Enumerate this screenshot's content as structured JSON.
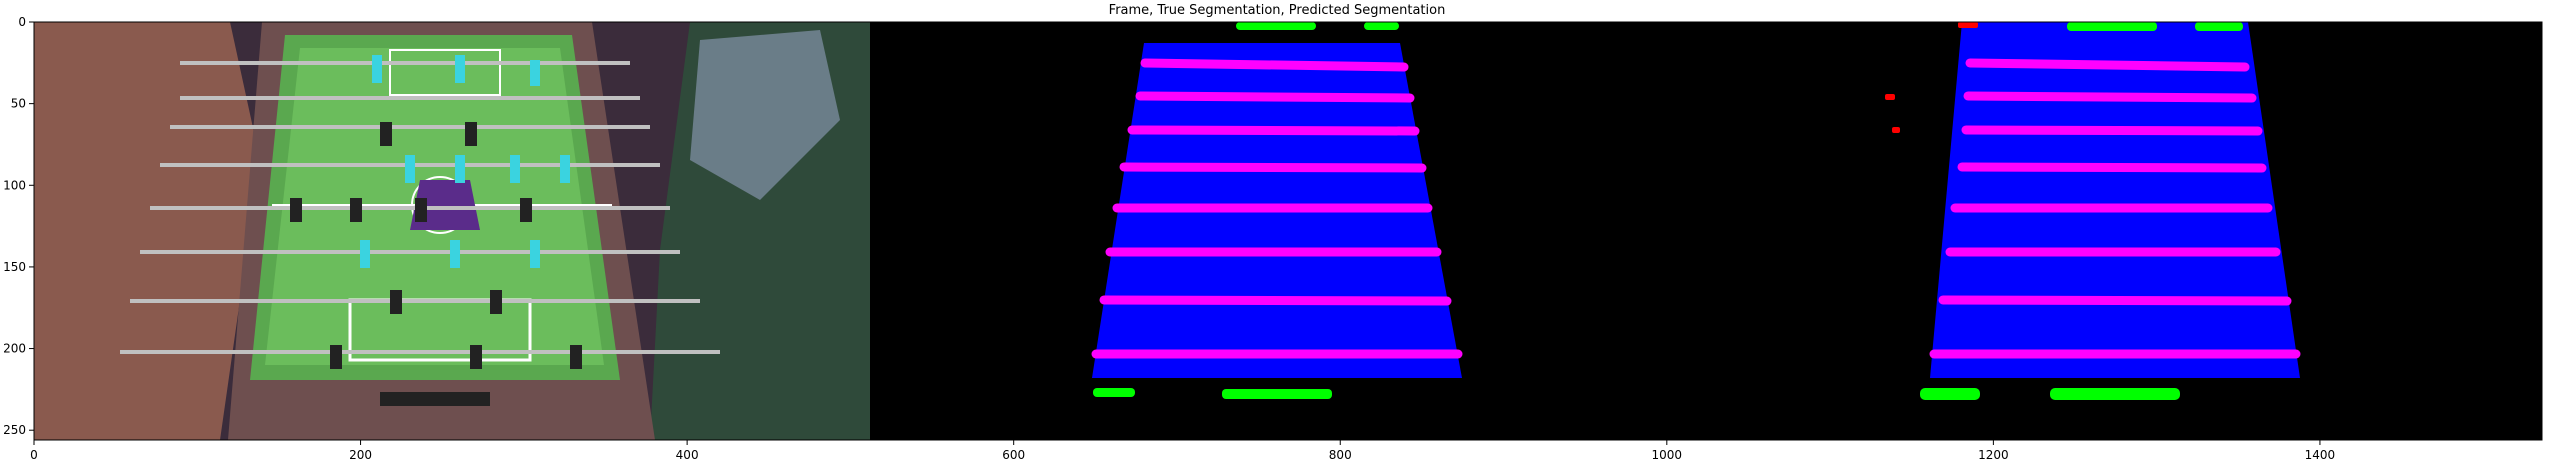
{
  "figure": {
    "title": "Frame, True Segmentation, Predicted Segmentation"
  },
  "chart_data": {
    "type": "image",
    "xlim": [
      0,
      1536
    ],
    "ylim": [
      256,
      0
    ],
    "x_ticks": [
      0,
      200,
      400,
      600,
      800,
      1000,
      1200,
      1400
    ],
    "y_ticks": [
      0,
      50,
      100,
      150,
      200,
      250
    ],
    "panels": [
      "Frame",
      "True Segmentation",
      "Predicted Segmentation"
    ],
    "colors": {
      "table": "#0000ff",
      "rods": "#ff00ff",
      "goal_area": "#00ff00",
      "noise": "#ff0000",
      "background": "#000000"
    }
  }
}
